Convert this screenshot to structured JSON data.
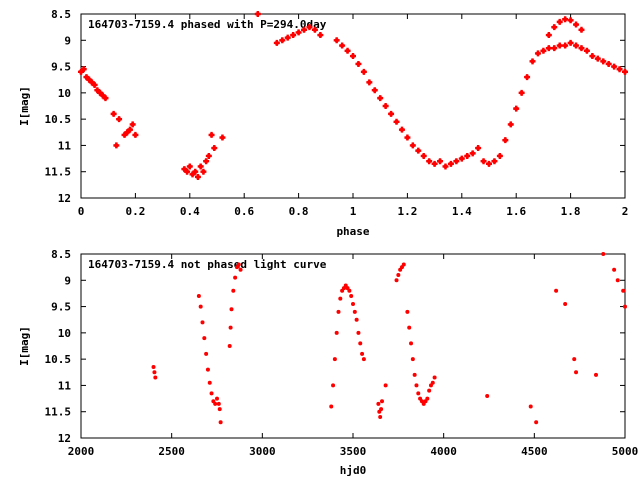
{
  "chart_data": [
    {
      "type": "scatter",
      "title": "164703-7159.4 phased with P=294.0day",
      "xlabel": "phase",
      "ylabel": "I[mag]",
      "xlim": [
        0,
        2
      ],
      "ylim": [
        12,
        8.5
      ],
      "y_inverted": true,
      "grid": false,
      "legend": "none",
      "marker_color": "#ff0000",
      "x_ticks": [
        "0",
        "0.2",
        "0.4",
        "0.6",
        "0.8",
        "1",
        "1.2",
        "1.4",
        "1.6",
        "1.8",
        "2"
      ],
      "y_ticks": [
        "8.5",
        "9",
        "9.5",
        "10",
        "10.5",
        "11",
        "11.5",
        "12"
      ],
      "series": [
        {
          "x": [
            0.0,
            0.01,
            0.02,
            0.03,
            0.04,
            0.05,
            0.06,
            0.07,
            0.08,
            0.09,
            0.12,
            0.13,
            0.14,
            0.16,
            0.17,
            0.18,
            0.19,
            0.2,
            0.38,
            0.39,
            0.4,
            0.41,
            0.42,
            0.43,
            0.44,
            0.45,
            0.46,
            0.47,
            0.48,
            0.49,
            0.52,
            0.65,
            0.72,
            0.74,
            0.76,
            0.78,
            0.8,
            0.82,
            0.84,
            0.86,
            0.88,
            0.94,
            0.96,
            0.98,
            1.0,
            1.02,
            1.04,
            1.06,
            1.08,
            1.1,
            1.12,
            1.14,
            1.16,
            1.18,
            1.2,
            1.22,
            1.24,
            1.26,
            1.28,
            1.3,
            1.32,
            1.34,
            1.36,
            1.38,
            1.4,
            1.42,
            1.44,
            1.46,
            1.48,
            1.5,
            1.52,
            1.54,
            1.56,
            1.58,
            1.6,
            1.62,
            1.64,
            1.66,
            1.68,
            1.7,
            1.72,
            1.74,
            1.76,
            1.78,
            1.8,
            1.82,
            1.84,
            1.86,
            1.88,
            1.9,
            1.92,
            1.94,
            1.96,
            1.98,
            2.0,
            1.72,
            1.74,
            1.76,
            1.78,
            1.8,
            1.82,
            1.84
          ],
          "y": [
            9.6,
            9.55,
            9.7,
            9.75,
            9.8,
            9.85,
            9.95,
            10.0,
            10.05,
            10.1,
            10.4,
            11.0,
            10.5,
            10.8,
            10.75,
            10.7,
            10.6,
            10.8,
            11.45,
            11.5,
            11.4,
            11.55,
            11.5,
            11.6,
            11.4,
            11.5,
            11.3,
            11.2,
            10.8,
            11.05,
            10.85,
            8.5,
            9.05,
            9.0,
            8.95,
            8.9,
            8.85,
            8.8,
            8.75,
            8.8,
            8.9,
            9.0,
            9.1,
            9.2,
            9.3,
            9.45,
            9.6,
            9.8,
            9.95,
            10.1,
            10.25,
            10.4,
            10.55,
            10.7,
            10.85,
            11.0,
            11.1,
            11.2,
            11.3,
            11.35,
            11.3,
            11.4,
            11.35,
            11.3,
            11.25,
            11.2,
            11.15,
            11.05,
            11.3,
            11.35,
            11.3,
            11.2,
            10.9,
            10.6,
            10.3,
            10.0,
            9.7,
            9.4,
            9.25,
            9.2,
            9.15,
            9.15,
            9.1,
            9.1,
            9.05,
            9.1,
            9.15,
            9.2,
            9.3,
            9.35,
            9.4,
            9.45,
            9.5,
            9.55,
            9.6,
            8.9,
            8.75,
            8.65,
            8.6,
            8.62,
            8.7,
            8.8
          ]
        }
      ]
    },
    {
      "type": "scatter",
      "title": "164703-7159.4 not phased light curve",
      "xlabel": "hjd0",
      "ylabel": "I[mag]",
      "xlim": [
        2000,
        5000
      ],
      "ylim": [
        12,
        8.5
      ],
      "y_inverted": true,
      "grid": false,
      "legend": "none",
      "marker_color": "#ff0000",
      "x_ticks": [
        "2000",
        "2500",
        "3000",
        "3500",
        "4000",
        "4500",
        "5000"
      ],
      "y_ticks": [
        "8.5",
        "9",
        "9.5",
        "10",
        "10.5",
        "11",
        "11.5",
        "12"
      ],
      "series": [
        {
          "x": [
            2400,
            2405,
            2410,
            2650,
            2660,
            2670,
            2680,
            2690,
            2700,
            2710,
            2720,
            2730,
            2740,
            2750,
            2760,
            2765,
            2770,
            2820,
            2825,
            2830,
            2840,
            2850,
            2860,
            2870,
            2880,
            3380,
            3390,
            3400,
            3410,
            3420,
            3430,
            3440,
            3450,
            3460,
            3470,
            3480,
            3490,
            3500,
            3510,
            3520,
            3530,
            3540,
            3550,
            3560,
            3640,
            3645,
            3650,
            3655,
            3660,
            3680,
            3740,
            3750,
            3760,
            3770,
            3780,
            3800,
            3810,
            3820,
            3830,
            3840,
            3850,
            3860,
            3870,
            3880,
            3890,
            3900,
            3910,
            3920,
            3930,
            3940,
            3950,
            4240,
            4480,
            4510,
            4620,
            4670,
            4720,
            4730,
            4840,
            4880,
            4940,
            4960,
            4990,
            5000
          ],
          "y": [
            10.65,
            10.75,
            10.85,
            9.3,
            9.5,
            9.8,
            10.1,
            10.4,
            10.7,
            10.95,
            11.15,
            11.3,
            11.35,
            11.25,
            11.35,
            11.45,
            11.7,
            10.25,
            9.9,
            9.55,
            9.2,
            8.95,
            8.75,
            8.7,
            8.8,
            11.4,
            11.0,
            10.5,
            10.0,
            9.6,
            9.35,
            9.2,
            9.15,
            9.1,
            9.15,
            9.2,
            9.3,
            9.45,
            9.6,
            9.75,
            10.0,
            10.2,
            10.4,
            10.5,
            11.35,
            11.5,
            11.6,
            11.45,
            11.3,
            11.0,
            9.0,
            8.9,
            8.8,
            8.75,
            8.7,
            9.6,
            9.9,
            10.2,
            10.5,
            10.8,
            11.0,
            11.15,
            11.25,
            11.3,
            11.35,
            11.3,
            11.25,
            11.1,
            11.0,
            10.95,
            10.85,
            11.2,
            11.4,
            11.7,
            9.2,
            9.45,
            10.5,
            10.75,
            10.8,
            8.5,
            8.8,
            9.0,
            9.2,
            9.5
          ]
        }
      ]
    }
  ]
}
